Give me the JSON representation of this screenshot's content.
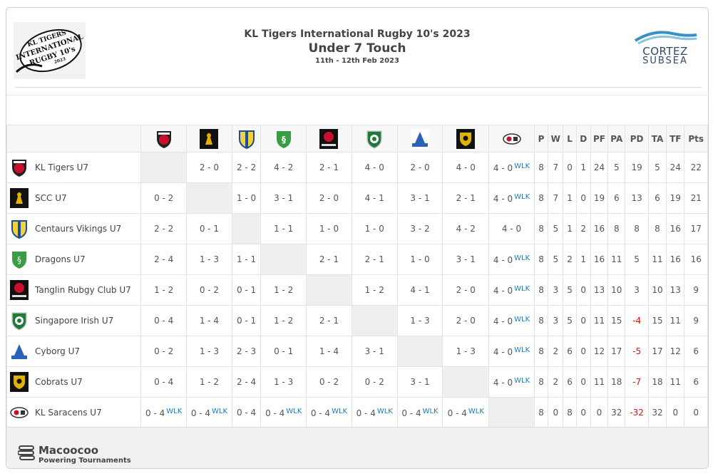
{
  "event": {
    "title": "KL Tigers International Rugby 10's 2023",
    "division": "Under 7 Touch",
    "dates": "11th - 12th Feb 2023",
    "logo_text": [
      "KL TIGERS",
      "INTERNATIONAL",
      "RUGBY 10's",
      "2023"
    ]
  },
  "sponsor": {
    "name": "CORTEZ",
    "sub": "SUBSEA",
    "color": "#2e4a66"
  },
  "table": {
    "stat_headers": [
      "P",
      "W",
      "L",
      "D",
      "PF",
      "PA",
      "PD",
      "TA",
      "TF",
      "Pts"
    ],
    "column_crests": [
      "kl-tigers-crest-icon",
      "scc-crest-icon",
      "centaurs-crest-icon",
      "dragons-crest-icon",
      "tanglin-crest-icon",
      "irish-crest-icon",
      "cyborg-crest-icon",
      "cobrats-crest-icon",
      "saracens-crest-icon"
    ],
    "rows": [
      {
        "team": "KL Tigers U7",
        "crest": "kl-tigers-crest-icon",
        "results": [
          null,
          "2 - 0",
          "2 - 2",
          "4 - 2",
          "2 - 1",
          "4 - 0",
          "2 - 0",
          "4 - 0",
          "4 - 0"
        ],
        "wlk": [
          false,
          false,
          false,
          false,
          false,
          false,
          false,
          false,
          true
        ],
        "stats": [
          "8",
          "7",
          "0",
          "1",
          "24",
          "5",
          "19",
          "5",
          "24",
          "22"
        ]
      },
      {
        "team": "SCC U7",
        "crest": "scc-crest-icon",
        "results": [
          "0 - 2",
          null,
          "1 - 0",
          "3 - 1",
          "2 - 0",
          "4 - 1",
          "3 - 1",
          "2 - 1",
          "4 - 0"
        ],
        "wlk": [
          false,
          false,
          false,
          false,
          false,
          false,
          false,
          false,
          true
        ],
        "stats": [
          "8",
          "7",
          "1",
          "0",
          "19",
          "6",
          "13",
          "6",
          "19",
          "21"
        ]
      },
      {
        "team": "Centaurs Vikings U7",
        "crest": "centaurs-crest-icon",
        "results": [
          "2 - 2",
          "0 - 1",
          null,
          "1 - 1",
          "1 - 0",
          "1 - 0",
          "3 - 2",
          "4 - 2",
          "4 - 0"
        ],
        "wlk": [
          false,
          false,
          false,
          false,
          false,
          false,
          false,
          false,
          false
        ],
        "stats": [
          "8",
          "5",
          "1",
          "2",
          "16",
          "8",
          "8",
          "8",
          "16",
          "17"
        ]
      },
      {
        "team": "Dragons U7",
        "crest": "dragons-crest-icon",
        "results": [
          "2 - 4",
          "1 - 3",
          "1 - 1",
          null,
          "2 - 1",
          "2 - 1",
          "1 - 0",
          "3 - 1",
          "4 - 0"
        ],
        "wlk": [
          false,
          false,
          false,
          false,
          false,
          false,
          false,
          false,
          true
        ],
        "stats": [
          "8",
          "5",
          "2",
          "1",
          "16",
          "11",
          "5",
          "11",
          "16",
          "16"
        ]
      },
      {
        "team": "Tanglin Rubgy Club U7",
        "crest": "tanglin-crest-icon",
        "results": [
          "1 - 2",
          "0 - 2",
          "0 - 1",
          "1 - 2",
          null,
          "1 - 2",
          "4 - 1",
          "2 - 0",
          "4 - 0"
        ],
        "wlk": [
          false,
          false,
          false,
          false,
          false,
          false,
          false,
          false,
          true
        ],
        "stats": [
          "8",
          "3",
          "5",
          "0",
          "13",
          "10",
          "3",
          "10",
          "13",
          "9"
        ]
      },
      {
        "team": "Singapore Irish U7",
        "crest": "irish-crest-icon",
        "results": [
          "0 - 4",
          "1 - 4",
          "0 - 1",
          "1 - 2",
          "2 - 1",
          null,
          "1 - 3",
          "2 - 0",
          "4 - 0"
        ],
        "wlk": [
          false,
          false,
          false,
          false,
          false,
          false,
          false,
          false,
          true
        ],
        "stats": [
          "8",
          "3",
          "5",
          "0",
          "11",
          "15",
          "-4",
          "15",
          "11",
          "9"
        ]
      },
      {
        "team": "Cyborg U7",
        "crest": "cyborg-crest-icon",
        "results": [
          "0 - 2",
          "1 - 3",
          "2 - 3",
          "0 - 1",
          "1 - 4",
          "3 - 1",
          null,
          "1 - 3",
          "4 - 0"
        ],
        "wlk": [
          false,
          false,
          false,
          false,
          false,
          false,
          false,
          false,
          true
        ],
        "stats": [
          "8",
          "2",
          "6",
          "0",
          "12",
          "17",
          "-5",
          "17",
          "12",
          "6"
        ]
      },
      {
        "team": "Cobrats U7",
        "crest": "cobrats-crest-icon",
        "results": [
          "0 - 4",
          "1 - 2",
          "2 - 4",
          "1 - 3",
          "0 - 2",
          "0 - 2",
          "3 - 1",
          null,
          "4 - 0"
        ],
        "wlk": [
          false,
          false,
          false,
          false,
          false,
          false,
          false,
          false,
          true
        ],
        "stats": [
          "8",
          "2",
          "6",
          "0",
          "11",
          "18",
          "-7",
          "18",
          "11",
          "6"
        ]
      },
      {
        "team": "KL Saracens U7",
        "crest": "saracens-crest-icon",
        "results": [
          "0 - 4",
          "0 - 4",
          "0 - 4",
          "0 - 4",
          "0 - 4",
          "0 - 4",
          "0 - 4",
          "0 - 4",
          null
        ],
        "wlk": [
          true,
          true,
          false,
          true,
          true,
          true,
          true,
          true,
          false
        ],
        "stats": [
          "8",
          "0",
          "8",
          "0",
          "0",
          "32",
          "-32",
          "32",
          "0",
          "0"
        ]
      }
    ],
    "wlk_label": "WLK",
    "negative_color": "#e01010",
    "wlk_color": "#1a7bbf"
  },
  "footer": {
    "brand": "Macoocoo",
    "tagline": "Powering Tournaments"
  }
}
